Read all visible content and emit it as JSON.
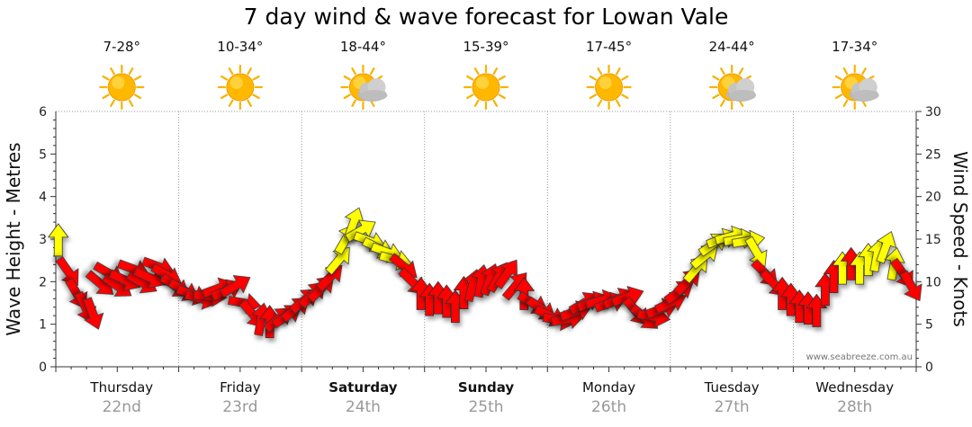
{
  "title": "7 day wind & wave forecast for Lowan Vale",
  "credit": "www.seabreeze.com.au",
  "colors": {
    "strong_wind": "#ff0000",
    "moderate_wind": "#ffff00",
    "arrow_stroke": "#333333",
    "grid": "#999999",
    "axis": "#333333",
    "day_date": "#999999"
  },
  "days": [
    {
      "name": "Thursday",
      "date": "22nd",
      "range": "7-28°",
      "icon": "sun-icon",
      "bold": false
    },
    {
      "name": "Friday",
      "date": "23rd",
      "range": "10-34°",
      "icon": "sun-icon",
      "bold": false
    },
    {
      "name": "Saturday",
      "date": "24th",
      "range": "18-44°",
      "icon": "sun-cloud-icon",
      "bold": true
    },
    {
      "name": "Sunday",
      "date": "25th",
      "range": "15-39°",
      "icon": "sun-icon",
      "bold": true
    },
    {
      "name": "Monday",
      "date": "26th",
      "range": "17-45°",
      "icon": "sun-icon",
      "bold": false
    },
    {
      "name": "Tuesday",
      "date": "27th",
      "range": "24-44°",
      "icon": "sun-cloud-icon",
      "bold": false
    },
    {
      "name": "Wednesday",
      "date": "28th",
      "range": "17-34°",
      "icon": "sun-cloud-icon",
      "bold": false
    }
  ],
  "chart_data": {
    "type": "scatter",
    "title": "7 day wind & wave forecast for Lowan Vale",
    "y_left_label": "Wave Height - Metres",
    "y_left_ticks": [
      0,
      1,
      2,
      3,
      4,
      5,
      6
    ],
    "y_left_range": [
      0,
      6
    ],
    "y_right_label": "Wind Speed - Knots",
    "y_right_ticks": [
      0,
      5,
      10,
      15,
      20,
      25,
      30
    ],
    "y_right_range": [
      0,
      30
    ],
    "x_range_days": [
      0,
      7
    ],
    "grid": true,
    "series": [
      {
        "legend_in_chart": false,
        "points": [
          {
            "t": 0.02,
            "knots": 14.8,
            "dir": 0,
            "strength": "moderate"
          },
          {
            "t": 0.1,
            "knots": 11.2,
            "dir": 145,
            "strength": "strong"
          },
          {
            "t": 0.17,
            "knots": 8.6,
            "dir": 150,
            "strength": "strong"
          },
          {
            "t": 0.24,
            "knots": 7.0,
            "dir": 155,
            "strength": "strong"
          },
          {
            "t": 0.3,
            "knots": 6.3,
            "dir": 160,
            "strength": "strong"
          },
          {
            "t": 0.36,
            "knots": 9.8,
            "dir": 130,
            "strength": "strong"
          },
          {
            "t": 0.43,
            "knots": 11.0,
            "dir": 120,
            "strength": "strong"
          },
          {
            "t": 0.5,
            "knots": 9.5,
            "dir": 125,
            "strength": "strong"
          },
          {
            "t": 0.56,
            "knots": 10.2,
            "dir": 115,
            "strength": "strong"
          },
          {
            "t": 0.63,
            "knots": 11.5,
            "dir": 110,
            "strength": "strong"
          },
          {
            "t": 0.7,
            "knots": 9.9,
            "dir": 120,
            "strength": "strong"
          },
          {
            "t": 0.76,
            "knots": 10.5,
            "dir": 115,
            "strength": "strong"
          },
          {
            "t": 0.83,
            "knots": 11.8,
            "dir": 110,
            "strength": "strong"
          },
          {
            "t": 0.9,
            "knots": 10.8,
            "dir": 120,
            "strength": "strong"
          },
          {
            "t": 0.97,
            "knots": 9.5,
            "dir": 125,
            "strength": "strong"
          },
          {
            "t": 1.04,
            "knots": 9.0,
            "dir": 120,
            "strength": "strong"
          },
          {
            "t": 1.11,
            "knots": 8.5,
            "dir": 110,
            "strength": "strong"
          },
          {
            "t": 1.18,
            "knots": 8.0,
            "dir": 105,
            "strength": "strong"
          },
          {
            "t": 1.25,
            "knots": 8.3,
            "dir": 95,
            "strength": "strong"
          },
          {
            "t": 1.32,
            "knots": 9.2,
            "dir": 70,
            "strength": "strong"
          },
          {
            "t": 1.39,
            "knots": 9.0,
            "dir": 65,
            "strength": "strong"
          },
          {
            "t": 1.46,
            "knots": 9.5,
            "dir": 60,
            "strength": "strong"
          },
          {
            "t": 1.53,
            "knots": 7.5,
            "dir": 100,
            "strength": "strong"
          },
          {
            "t": 1.6,
            "knots": 6.2,
            "dir": 140,
            "strength": "strong"
          },
          {
            "t": 1.67,
            "knots": 5.5,
            "dir": 10,
            "strength": "strong"
          },
          {
            "t": 1.74,
            "knots": 5.2,
            "dir": 0,
            "strength": "strong"
          },
          {
            "t": 1.81,
            "knots": 5.6,
            "dir": 50,
            "strength": "strong"
          },
          {
            "t": 1.88,
            "knots": 6.0,
            "dir": 55,
            "strength": "strong"
          },
          {
            "t": 1.95,
            "knots": 6.8,
            "dir": 50,
            "strength": "strong"
          },
          {
            "t": 2.02,
            "knots": 7.8,
            "dir": 50,
            "strength": "strong"
          },
          {
            "t": 2.09,
            "knots": 8.5,
            "dir": 45,
            "strength": "strong"
          },
          {
            "t": 2.16,
            "knots": 9.2,
            "dir": 45,
            "strength": "strong"
          },
          {
            "t": 2.23,
            "knots": 10.5,
            "dir": 45,
            "strength": "strong"
          },
          {
            "t": 2.3,
            "knots": 12.5,
            "dir": 40,
            "strength": "moderate"
          },
          {
            "t": 2.36,
            "knots": 15.0,
            "dir": 30,
            "strength": "moderate"
          },
          {
            "t": 2.42,
            "knots": 16.8,
            "dir": 20,
            "strength": "moderate"
          },
          {
            "t": 2.48,
            "knots": 16.0,
            "dir": 60,
            "strength": "moderate"
          },
          {
            "t": 2.55,
            "knots": 14.8,
            "dir": 110,
            "strength": "moderate"
          },
          {
            "t": 2.62,
            "knots": 14.0,
            "dir": 115,
            "strength": "moderate"
          },
          {
            "t": 2.69,
            "knots": 13.5,
            "dir": 110,
            "strength": "moderate"
          },
          {
            "t": 2.76,
            "knots": 12.6,
            "dir": 105,
            "strength": "moderate"
          },
          {
            "t": 2.83,
            "knots": 11.8,
            "dir": 130,
            "strength": "strong"
          },
          {
            "t": 2.9,
            "knots": 10.0,
            "dir": 135,
            "strength": "strong"
          },
          {
            "t": 2.97,
            "knots": 8.5,
            "dir": 0,
            "strength": "strong"
          },
          {
            "t": 3.04,
            "knots": 7.8,
            "dir": 0,
            "strength": "strong"
          },
          {
            "t": 3.11,
            "knots": 8.0,
            "dir": 0,
            "strength": "strong"
          },
          {
            "t": 3.18,
            "knots": 7.6,
            "dir": 0,
            "strength": "strong"
          },
          {
            "t": 3.25,
            "knots": 7.0,
            "dir": 0,
            "strength": "strong"
          },
          {
            "t": 3.32,
            "knots": 8.6,
            "dir": 0,
            "strength": "strong"
          },
          {
            "t": 3.39,
            "knots": 9.5,
            "dir": 15,
            "strength": "strong"
          },
          {
            "t": 3.46,
            "knots": 10.0,
            "dir": 10,
            "strength": "strong"
          },
          {
            "t": 3.53,
            "knots": 10.2,
            "dir": 20,
            "strength": "strong"
          },
          {
            "t": 3.6,
            "knots": 10.5,
            "dir": 30,
            "strength": "strong"
          },
          {
            "t": 3.67,
            "knots": 10.9,
            "dir": 35,
            "strength": "strong"
          },
          {
            "t": 3.74,
            "knots": 9.5,
            "dir": 40,
            "strength": "strong"
          },
          {
            "t": 3.81,
            "knots": 8.5,
            "dir": 0,
            "strength": "strong"
          },
          {
            "t": 3.88,
            "knots": 7.5,
            "dir": 120,
            "strength": "strong"
          },
          {
            "t": 3.95,
            "knots": 6.8,
            "dir": 125,
            "strength": "strong"
          },
          {
            "t": 4.02,
            "knots": 6.0,
            "dir": 115,
            "strength": "strong"
          },
          {
            "t": 4.09,
            "knots": 5.5,
            "dir": 100,
            "strength": "strong"
          },
          {
            "t": 4.16,
            "knots": 5.6,
            "dir": 80,
            "strength": "strong"
          },
          {
            "t": 4.23,
            "knots": 6.5,
            "dir": 70,
            "strength": "strong"
          },
          {
            "t": 4.3,
            "knots": 7.5,
            "dir": 60,
            "strength": "strong"
          },
          {
            "t": 4.37,
            "knots": 7.6,
            "dir": 70,
            "strength": "strong"
          },
          {
            "t": 4.44,
            "knots": 7.8,
            "dir": 75,
            "strength": "strong"
          },
          {
            "t": 4.51,
            "knots": 7.5,
            "dir": 70,
            "strength": "strong"
          },
          {
            "t": 4.58,
            "knots": 8.0,
            "dir": 65,
            "strength": "strong"
          },
          {
            "t": 4.65,
            "knots": 8.2,
            "dir": 70,
            "strength": "strong"
          },
          {
            "t": 4.72,
            "knots": 6.5,
            "dir": 140,
            "strength": "strong"
          },
          {
            "t": 4.79,
            "knots": 5.8,
            "dir": 130,
            "strength": "strong"
          },
          {
            "t": 4.86,
            "knots": 5.9,
            "dir": 100,
            "strength": "strong"
          },
          {
            "t": 4.93,
            "knots": 6.8,
            "dir": 70,
            "strength": "strong"
          },
          {
            "t": 5.0,
            "knots": 7.5,
            "dir": 65,
            "strength": "strong"
          },
          {
            "t": 5.07,
            "knots": 8.8,
            "dir": 55,
            "strength": "strong"
          },
          {
            "t": 5.14,
            "knots": 10.0,
            "dir": 45,
            "strength": "strong"
          },
          {
            "t": 5.21,
            "knots": 11.5,
            "dir": 40,
            "strength": "moderate"
          },
          {
            "t": 5.28,
            "knots": 13.0,
            "dir": 50,
            "strength": "moderate"
          },
          {
            "t": 5.35,
            "knots": 14.4,
            "dir": 55,
            "strength": "moderate"
          },
          {
            "t": 5.42,
            "knots": 15.0,
            "dir": 70,
            "strength": "moderate"
          },
          {
            "t": 5.49,
            "knots": 15.3,
            "dir": 75,
            "strength": "moderate"
          },
          {
            "t": 5.56,
            "knots": 15.0,
            "dir": 80,
            "strength": "moderate"
          },
          {
            "t": 5.63,
            "knots": 14.8,
            "dir": 80,
            "strength": "moderate"
          },
          {
            "t": 5.7,
            "knots": 13.5,
            "dir": 150,
            "strength": "moderate"
          },
          {
            "t": 5.77,
            "knots": 11.0,
            "dir": 135,
            "strength": "strong"
          },
          {
            "t": 5.84,
            "knots": 9.8,
            "dir": 135,
            "strength": "strong"
          },
          {
            "t": 5.91,
            "knots": 8.5,
            "dir": 0,
            "strength": "strong"
          },
          {
            "t": 5.98,
            "knots": 7.8,
            "dir": 0,
            "strength": "strong"
          },
          {
            "t": 6.05,
            "knots": 7.0,
            "dir": 0,
            "strength": "strong"
          },
          {
            "t": 6.12,
            "knots": 6.8,
            "dir": 0,
            "strength": "strong"
          },
          {
            "t": 6.19,
            "knots": 6.5,
            "dir": 0,
            "strength": "strong"
          },
          {
            "t": 6.26,
            "knots": 9.0,
            "dir": 0,
            "strength": "strong"
          },
          {
            "t": 6.33,
            "knots": 10.5,
            "dir": 0,
            "strength": "strong"
          },
          {
            "t": 6.4,
            "knots": 11.5,
            "dir": 0,
            "strength": "moderate"
          },
          {
            "t": 6.47,
            "knots": 12.0,
            "dir": 0,
            "strength": "strong"
          },
          {
            "t": 6.54,
            "knots": 11.5,
            "dir": 0,
            "strength": "moderate"
          },
          {
            "t": 6.61,
            "knots": 12.5,
            "dir": 0,
            "strength": "moderate"
          },
          {
            "t": 6.68,
            "knots": 13.0,
            "dir": 10,
            "strength": "moderate"
          },
          {
            "t": 6.75,
            "knots": 14.0,
            "dir": 20,
            "strength": "moderate"
          },
          {
            "t": 6.82,
            "knots": 12.0,
            "dir": 10,
            "strength": "moderate"
          },
          {
            "t": 6.89,
            "knots": 11.0,
            "dir": 145,
            "strength": "strong"
          },
          {
            "t": 6.96,
            "knots": 9.5,
            "dir": 150,
            "strength": "strong"
          }
        ]
      }
    ]
  }
}
